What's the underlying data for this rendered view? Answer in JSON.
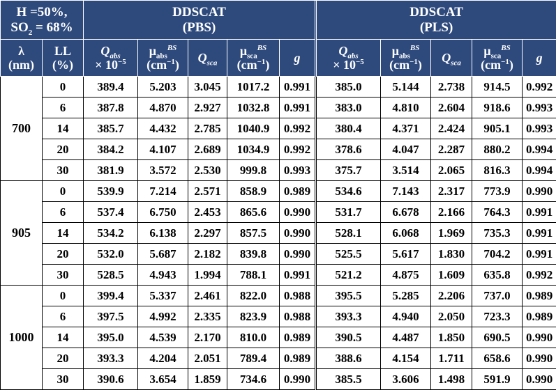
{
  "header": {
    "condition": {
      "line1": "H =50%,",
      "line2_prefix": "SO",
      "line2_sub": "2",
      "line2_suffix": " = 68%"
    },
    "group_pbs": {
      "line1": "DDSCAT",
      "line2": "(PBS)"
    },
    "group_pls": {
      "line1": "DDSCAT",
      "line2": "(PLS)"
    },
    "col_lambda": {
      "line1": "λ",
      "line2": "(nm)"
    },
    "col_ll": {
      "line1": "LL",
      "line2": "(%)"
    },
    "col_qabs": {
      "sym": "Q",
      "sub": "abs",
      "line2": "× 10",
      "exp": "−5"
    },
    "col_mu_abs": {
      "sym": "μ",
      "sub": "abs",
      "sup": "BS",
      "line2": "(cm",
      "exp": "−1",
      "close": ")"
    },
    "col_qsca": {
      "sym": "Q",
      "sub": "sca"
    },
    "col_mu_sca": {
      "sym": "μ",
      "sub": "sca",
      "sup": "BS",
      "line2": "(cm",
      "exp": "−1",
      "close": ")"
    },
    "col_g": "g"
  },
  "groups": [
    {
      "lambda": "700",
      "rows": [
        {
          "ll": "0",
          "pbs": [
            "389.4",
            "5.203",
            "3.045",
            "1017.2",
            "0.991"
          ],
          "pls": [
            "385.0",
            "5.144",
            "2.738",
            "914.5",
            "0.992"
          ]
        },
        {
          "ll": "6",
          "pbs": [
            "387.8",
            "4.870",
            "2.927",
            "1032.8",
            "0.991"
          ],
          "pls": [
            "383.0",
            "4.810",
            "2.604",
            "918.6",
            "0.993"
          ]
        },
        {
          "ll": "14",
          "pbs": [
            "385.7",
            "4.432",
            "2.785",
            "1040.9",
            "0.992"
          ],
          "pls": [
            "380.4",
            "4.371",
            "2.424",
            "905.1",
            "0.993"
          ]
        },
        {
          "ll": "20",
          "pbs": [
            "384.2",
            "4.107",
            "2.689",
            "1034.9",
            "0.992"
          ],
          "pls": [
            "378.6",
            "4.047",
            "2.287",
            "880.2",
            "0.994"
          ]
        },
        {
          "ll": "30",
          "pbs": [
            "381.9",
            "3.572",
            "2.530",
            "999.8",
            "0.993"
          ],
          "pls": [
            "375.7",
            "3.514",
            "2.065",
            "816.3",
            "0.994"
          ]
        }
      ]
    },
    {
      "lambda": "905",
      "rows": [
        {
          "ll": "0",
          "pbs": [
            "539.9",
            "7.214",
            "2.571",
            "858.9",
            "0.989"
          ],
          "pls": [
            "534.6",
            "7.143",
            "2.317",
            "773.9",
            "0.990"
          ]
        },
        {
          "ll": "6",
          "pbs": [
            "537.4",
            "6.750",
            "2.453",
            "865.6",
            "0.990"
          ],
          "pls": [
            "531.7",
            "6.678",
            "2.166",
            "764.3",
            "0.991"
          ]
        },
        {
          "ll": "14",
          "pbs": [
            "534.2",
            "6.138",
            "2.297",
            "857.5",
            "0.990"
          ],
          "pls": [
            "528.1",
            "6.068",
            "1.969",
            "735.3",
            "0.991"
          ]
        },
        {
          "ll": "20",
          "pbs": [
            "532.0",
            "5.687",
            "2.182",
            "839.8",
            "0.990"
          ],
          "pls": [
            "525.5",
            "5.617",
            "1.830",
            "704.2",
            "0.991"
          ]
        },
        {
          "ll": "30",
          "pbs": [
            "528.5",
            "4.943",
            "1.994",
            "788.1",
            "0.991"
          ],
          "pls": [
            "521.2",
            "4.875",
            "1.609",
            "635.8",
            "0.992"
          ]
        }
      ]
    },
    {
      "lambda": "1000",
      "rows": [
        {
          "ll": "0",
          "pbs": [
            "399.4",
            "5.337",
            "2.461",
            "822.0",
            "0.988"
          ],
          "pls": [
            "395.5",
            "5.285",
            "2.206",
            "737.0",
            "0.989"
          ]
        },
        {
          "ll": "6",
          "pbs": [
            "397.5",
            "4.992",
            "2.335",
            "823.9",
            "0.988"
          ],
          "pls": [
            "393.3",
            "4.940",
            "2.050",
            "723.3",
            "0.989"
          ]
        },
        {
          "ll": "14",
          "pbs": [
            "395.0",
            "4.539",
            "2.170",
            "810.0",
            "0.989"
          ],
          "pls": [
            "390.5",
            "4.487",
            "1.850",
            "690.5",
            "0.990"
          ]
        },
        {
          "ll": "20",
          "pbs": [
            "393.3",
            "4.204",
            "2.051",
            "789.4",
            "0.989"
          ],
          "pls": [
            "388.6",
            "4.154",
            "1.711",
            "658.6",
            "0.990"
          ]
        },
        {
          "ll": "30",
          "pbs": [
            "390.6",
            "3.654",
            "1.859",
            "734.6",
            "0.990"
          ],
          "pls": [
            "385.5",
            "3.606",
            "1.498",
            "591.9",
            "0.990"
          ]
        }
      ]
    }
  ]
}
